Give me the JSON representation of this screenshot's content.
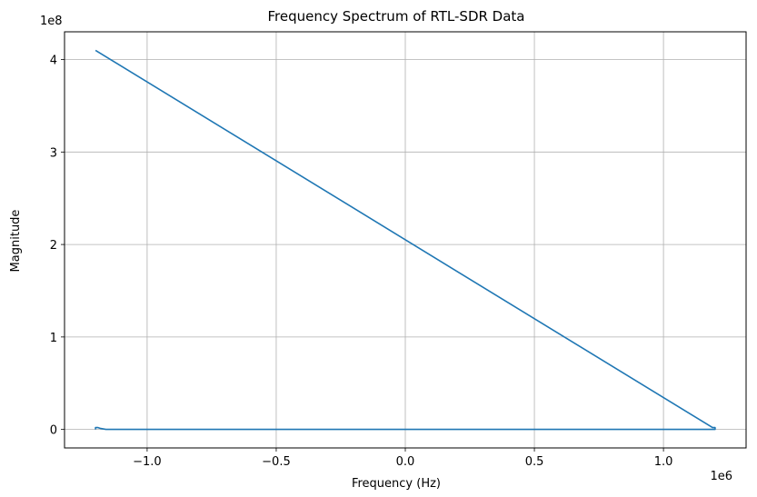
{
  "chart_data": {
    "type": "line",
    "title": "Frequency Spectrum of RTL-SDR Data",
    "xlabel": "Frequency (Hz)",
    "ylabel": "Magnitude",
    "x_offset_label": "1e6",
    "y_offset_label": "1e8",
    "xlim": [
      -1.32,
      1.32
    ],
    "ylim": [
      -0.2,
      4.3
    ],
    "x_scale": 1000000,
    "y_scale": 100000000,
    "x_ticks": [
      -1.0,
      -0.5,
      0.0,
      0.5,
      1.0
    ],
    "x_tick_labels": [
      "−1.0",
      "−0.5",
      "0.0",
      "0.5",
      "1.0"
    ],
    "y_ticks": [
      0,
      1,
      2,
      3,
      4
    ],
    "y_tick_labels": [
      "0",
      "1",
      "2",
      "3",
      "4"
    ],
    "grid": true,
    "line_color": "#1f77b4",
    "series": [
      {
        "x": [
          -1.2,
          -1.2,
          -1.19,
          -1.18,
          -1.16,
          0.0,
          1.1,
          1.2,
          1.2,
          1.19,
          -1.2
        ],
        "y": [
          0.0,
          0.02,
          0.02,
          0.01,
          0.0,
          0.0,
          0.0,
          0.0,
          0.02,
          0.02,
          4.1
        ]
      }
    ]
  }
}
